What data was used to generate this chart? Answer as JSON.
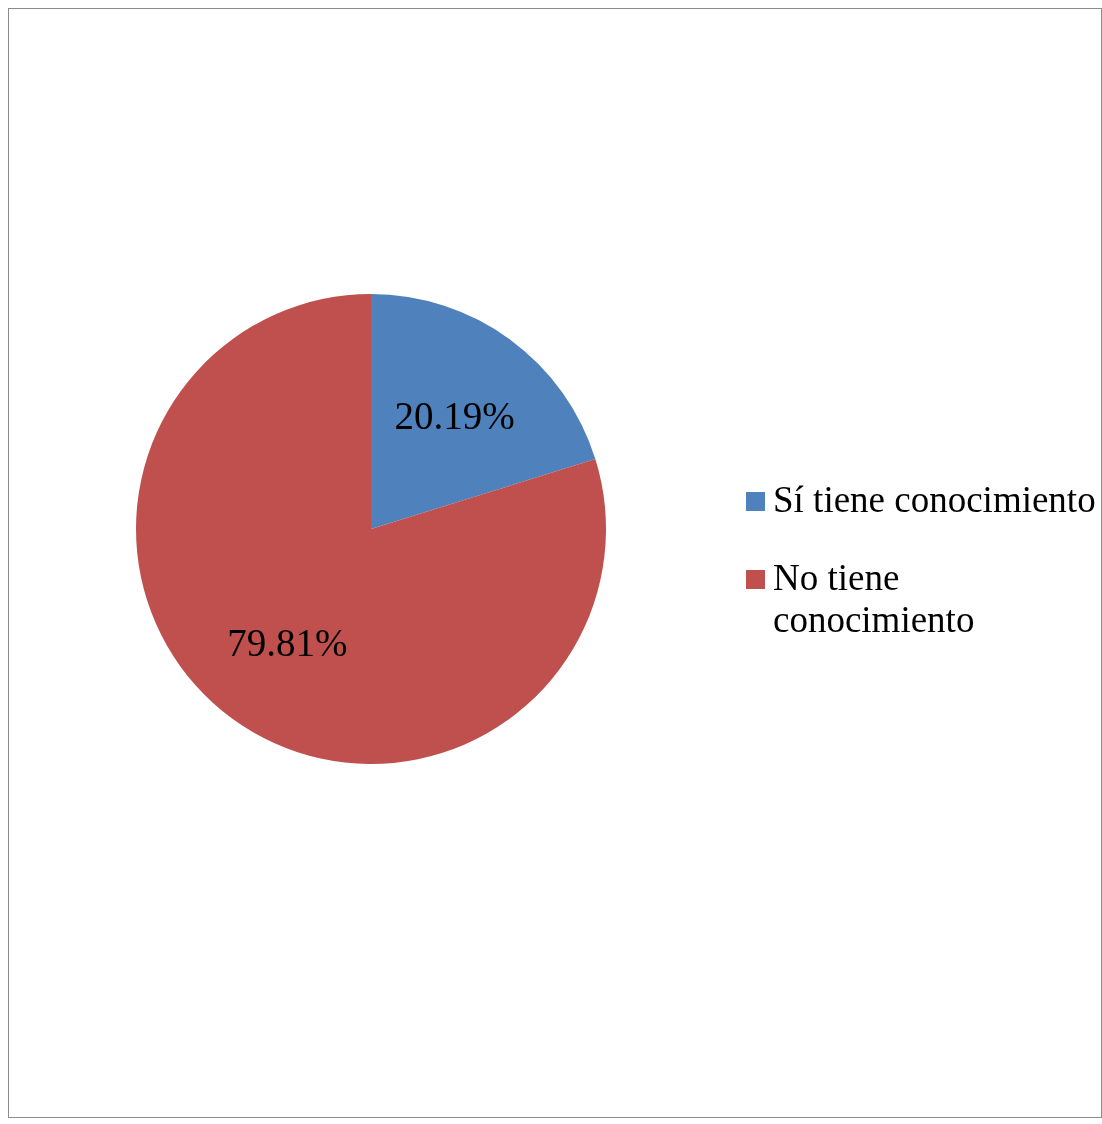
{
  "chart_data": {
    "type": "pie",
    "categories": [
      "Sí tiene conocimiento",
      "No tiene conocimiento"
    ],
    "values": [
      20.19,
      79.81
    ],
    "colors": [
      "#4f81bd",
      "#c0504d"
    ],
    "value_labels": [
      "20.19%",
      "79.81%"
    ],
    "legend": "right"
  }
}
